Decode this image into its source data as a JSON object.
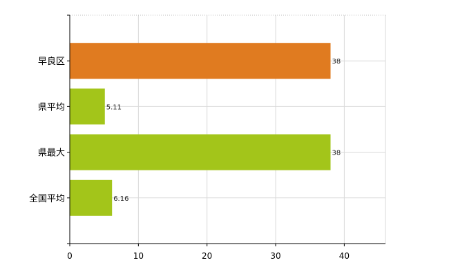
{
  "chart_data": {
    "type": "bar",
    "orientation": "horizontal",
    "categories": [
      "早良区",
      "県平均",
      "県最大",
      "全国平均"
    ],
    "values": [
      38,
      5.11,
      38,
      6.16
    ],
    "data_labels": [
      "38",
      "5.11",
      "38",
      "6.16"
    ],
    "colors": [
      "#e07b20",
      "#a3c51a",
      "#a3c51a",
      "#a3c51a"
    ],
    "xlim": [
      0,
      46
    ],
    "x_ticks": [
      0,
      10,
      20,
      30,
      40
    ],
    "x_tick_labels": [
      "0",
      "10",
      "20",
      "30",
      "40"
    ],
    "grid": true,
    "title": "",
    "xlabel": "",
    "ylabel": ""
  }
}
